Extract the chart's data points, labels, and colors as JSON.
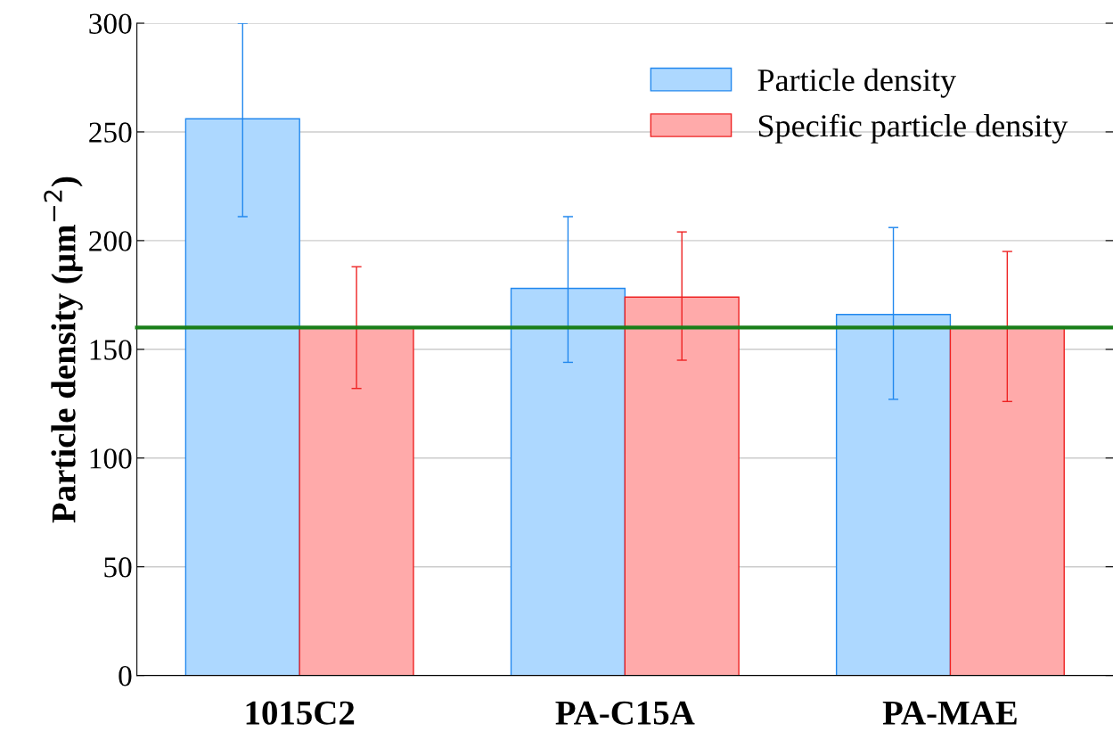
{
  "chart_data": {
    "type": "bar",
    "ylabel": "Particle density (µm$^{−2}$)",
    "categories": [
      "1015C2",
      "PA-C15A",
      "PA-MAE"
    ],
    "series": [
      {
        "name": "Particle density",
        "color": "#add8ff",
        "values": [
          256,
          178,
          166
        ],
        "errors": [
          [
            211,
            300
          ],
          [
            144,
            211
          ],
          [
            127,
            206
          ]
        ]
      },
      {
        "name": "Specific particle density",
        "color": "#ffaaaa",
        "values": [
          160,
          174,
          160
        ],
        "errors": [
          [
            132,
            188
          ],
          [
            145,
            204
          ],
          [
            126,
            195
          ]
        ]
      }
    ],
    "ylim": [
      0,
      300
    ],
    "yticks": [
      0,
      50,
      100,
      150,
      200,
      250,
      300
    ],
    "grid": "y",
    "legend": "top right",
    "ref_lines": [
      {
        "axis": "y",
        "value": 160,
        "color": "#1a7f1a",
        "line_style": "solid"
      }
    ]
  }
}
